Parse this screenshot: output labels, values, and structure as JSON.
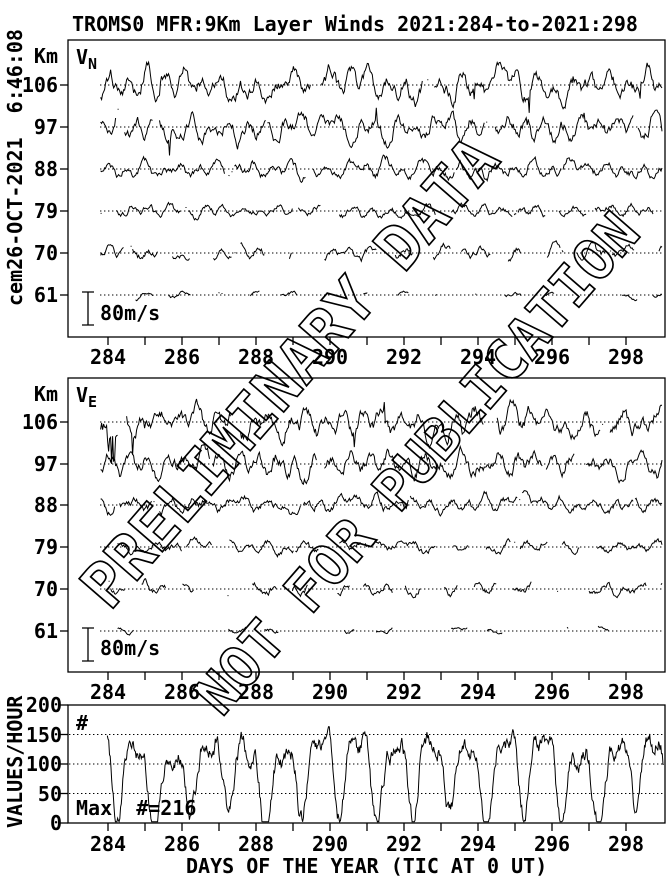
{
  "header": {
    "title": "TROMS0 MFR:9Km Layer Winds 2021:284-to-2021:298",
    "timestamp_left": "cem26-OCT-2021  6:46:08"
  },
  "watermark": {
    "line1": "PRELIMINARY DATA",
    "line2": "NOT FOR PUBLICATION"
  },
  "colors": {
    "ink": "#000000",
    "paper": "#ffffff"
  },
  "chart_data": {
    "type": "line",
    "title": "TROMS0 MFR:9Km Layer Winds 2021:284-to-2021:298",
    "x_label": "DAYS OF THE YEAR (TIC AT 0 UT)",
    "x_range_days": [
      284,
      299
    ],
    "x_tick_interval_days": 1,
    "x_tick_labels": [
      "284",
      "286",
      "288",
      "290",
      "292",
      "294",
      "296",
      "298"
    ],
    "x_tick_label_days": [
      284,
      286,
      288,
      290,
      292,
      294,
      296,
      298
    ],
    "grid": "dotted-horizontal",
    "legend_position": "none",
    "panels": [
      {
        "id": "v_north",
        "label": "V",
        "label_sub": "N",
        "y_axis_label": "Km",
        "scale_bar": {
          "label": "80m/s",
          "meters_per_second": 80
        },
        "description": "Northward wind time series stacked by altitude; dotted zero line per altitude",
        "series": [
          {
            "altitude_km": "106",
            "amplitude_ms": 32,
            "coverage": 1.0,
            "spikes": true,
            "start_spikes": false,
            "seed": 101
          },
          {
            "altitude_km": "97",
            "amplitude_ms": 27,
            "coverage": 1.0,
            "spikes": true,
            "start_spikes": false,
            "seed": 102
          },
          {
            "altitude_km": "88",
            "amplitude_ms": 18,
            "coverage": 0.96,
            "spikes": false,
            "start_spikes": false,
            "seed": 103
          },
          {
            "altitude_km": "79",
            "amplitude_ms": 13,
            "coverage": 0.78,
            "spikes": false,
            "start_spikes": false,
            "seed": 104
          },
          {
            "altitude_km": "70",
            "amplitude_ms": 15,
            "coverage": 0.52,
            "spikes": false,
            "start_spikes": false,
            "seed": 105
          },
          {
            "altitude_km": "61",
            "amplitude_ms": 7,
            "coverage": 0.3,
            "spikes": false,
            "start_spikes": false,
            "seed": 106
          }
        ]
      },
      {
        "id": "v_east",
        "label": "V",
        "label_sub": "E",
        "y_axis_label": "Km",
        "scale_bar": {
          "label": "80m/s",
          "meters_per_second": 80
        },
        "description": "Eastward wind time series stacked by altitude; dotted zero line per altitude",
        "series": [
          {
            "altitude_km": "106",
            "amplitude_ms": 32,
            "coverage": 1.0,
            "spikes": true,
            "start_spikes": true,
            "seed": 201
          },
          {
            "altitude_km": "97",
            "amplitude_ms": 27,
            "coverage": 1.0,
            "spikes": false,
            "start_spikes": false,
            "seed": 202
          },
          {
            "altitude_km": "88",
            "amplitude_ms": 18,
            "coverage": 0.96,
            "spikes": false,
            "start_spikes": false,
            "seed": 203
          },
          {
            "altitude_km": "79",
            "amplitude_ms": 13,
            "coverage": 0.75,
            "spikes": false,
            "start_spikes": false,
            "seed": 204
          },
          {
            "altitude_km": "70",
            "amplitude_ms": 14,
            "coverage": 0.5,
            "spikes": false,
            "start_spikes": false,
            "seed": 205
          },
          {
            "altitude_km": "61",
            "amplitude_ms": 7,
            "coverage": 0.3,
            "spikes": false,
            "start_spikes": false,
            "seed": 206
          }
        ]
      },
      {
        "id": "values_per_hour",
        "y_axis_label": "VALUES/HOUR",
        "corner_symbol": "#",
        "max_annotation": "Max  #=216",
        "max_value": 216,
        "y_ticks": [
          "0",
          "50",
          "100",
          "150",
          "200"
        ],
        "y_tick_values": [
          0,
          50,
          100,
          150,
          200
        ],
        "y_limit": [
          0,
          200
        ],
        "grid_values": [
          50,
          100,
          150
        ],
        "trace": {
          "typical_low": 5,
          "typical_high": 160,
          "period_days": 1,
          "seed": 301
        }
      }
    ]
  }
}
